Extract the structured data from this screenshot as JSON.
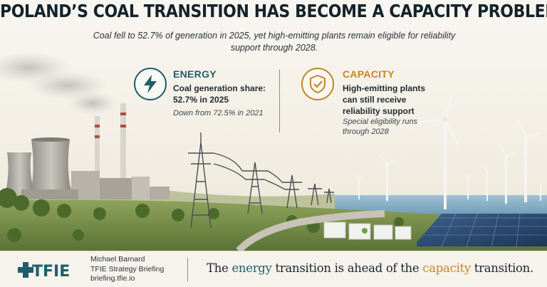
{
  "headline": "POLAND’S COAL TRANSITION HAS BECOME A CAPACITY PROBLEM",
  "subhead": "Coal fell to 52.7% of generation in 2025, yet high-emitting plants remain eligible for reliability support through 2028.",
  "energy": {
    "title": "ENERGY",
    "text": "Coal generation share: 52.7% in 2025",
    "note": "Down from 72.5% in 2021",
    "icon": "lightning-bolt-icon",
    "color": "#1f5f6a"
  },
  "capacity": {
    "title": "CAPACITY",
    "text": "High-emitting plants can still receive reliability support",
    "note": "Special eligibility runs through 2028",
    "icon": "shield-check-icon",
    "color": "#c88622"
  },
  "footer": {
    "logo_text": "TFIE",
    "author": "Michael Barnard",
    "org": "TFIE Strategy Briefing",
    "url": "briefing.tfie.io",
    "tagline": {
      "part1": "The ",
      "keyword1": "energy",
      "part2": " transition is ahead of the ",
      "keyword2": "capacity",
      "part3": " transition."
    }
  },
  "scene": {
    "elements": [
      "cooling-towers",
      "smokestacks",
      "transmission-towers",
      "wind-turbines",
      "battery-containers",
      "solar-panels",
      "sea"
    ]
  }
}
